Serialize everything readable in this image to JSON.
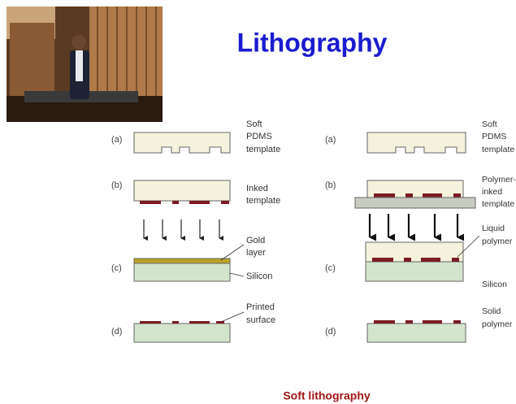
{
  "title": "Lithography",
  "caption": "Soft lithography",
  "left": {
    "steps": [
      "(a)",
      "(b)",
      "(c)",
      "(d)"
    ],
    "labels": [
      [
        "Soft",
        "PDMS",
        "template"
      ],
      [
        "Inked",
        "template"
      ],
      [
        "Gold",
        "layer"
      ],
      [
        "Silicon"
      ],
      [
        "Printed",
        "surface"
      ]
    ]
  },
  "right": {
    "steps": [
      "(a)",
      "(b)",
      "(c)",
      "(d)"
    ],
    "labels": [
      [
        "Soft",
        "PDMS",
        "template"
      ],
      [
        "Polymer-",
        "inked",
        "template"
      ],
      [
        "Liquid",
        "polymer"
      ],
      [
        "Silicon"
      ],
      [
        "Solid",
        "polymer"
      ]
    ]
  }
}
